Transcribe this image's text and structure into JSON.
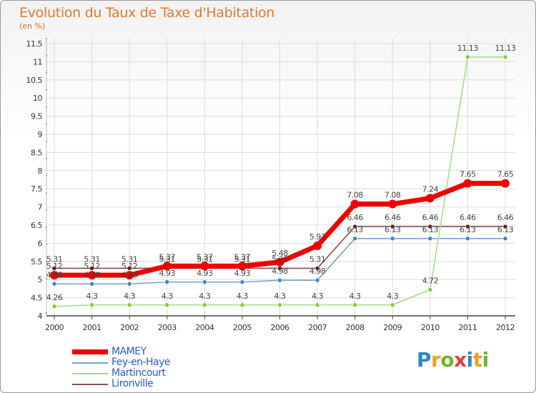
{
  "header": {
    "title": "Evolution du Taux de Taxe d'Habitation",
    "subtitle": "(en %)"
  },
  "colors": {
    "title": "#e07a2e",
    "axis": "#333333",
    "axis_red": "#cc0000",
    "grid": "#dcdcdc",
    "legend_text": "#2a5ac8"
  },
  "chart_data": {
    "type": "line",
    "title": "Evolution du Taux de Taxe d'Habitation",
    "subtitle": "(en %)",
    "xlabel": "",
    "ylabel": "",
    "x": [
      "2000",
      "2001",
      "2002",
      "2003",
      "2004",
      "2005",
      "2006",
      "2007",
      "2008",
      "2009",
      "2010",
      "2011",
      "2012"
    ],
    "ylim": [
      4,
      11.5
    ],
    "yticks": [
      "4",
      "4.5",
      "5",
      "5.5",
      "6",
      "6.5",
      "7",
      "7.5",
      "8",
      "8.5",
      "9",
      "9.5",
      "10",
      "10.5",
      "11",
      "11.5"
    ],
    "grid": true,
    "legend_position": "bottom-left",
    "series": [
      {
        "name": "MAMEY",
        "color": "#ee0000",
        "point_color": "#ee0000",
        "values": [
          5.12,
          5.12,
          5.12,
          5.37,
          5.37,
          5.37,
          5.48,
          5.93,
          7.08,
          7.08,
          7.24,
          7.65,
          7.65
        ],
        "labels": [
          "5.12",
          "5.12",
          "5.12",
          "5.37",
          "5.37",
          "5.37",
          "5.48",
          "5.93",
          "7.08",
          "7.08",
          "7.24",
          "7.65",
          "7.65"
        ]
      },
      {
        "name": "Fey-en-Haye",
        "color": "#7aa2c8",
        "point_color": "#3a86c8",
        "values": [
          4.88,
          4.88,
          4.88,
          4.93,
          4.93,
          4.93,
          4.98,
          4.98,
          6.13,
          6.13,
          6.13,
          6.13,
          6.13
        ],
        "labels": [
          "4.88",
          "4.88",
          "4.88",
          "4.93",
          "4.93",
          "4.93",
          "4.98",
          "4.98",
          "6.13",
          "6.13",
          "6.13",
          "6.13",
          "6.13"
        ]
      },
      {
        "name": "Martincourt",
        "color": "#a8dc8a",
        "point_color": "#86cc3c",
        "values": [
          4.26,
          4.3,
          4.3,
          4.3,
          4.3,
          4.3,
          4.3,
          4.3,
          4.3,
          4.3,
          4.72,
          11.13,
          11.13
        ],
        "labels": [
          "4.26",
          "4.3",
          "4.3",
          "4.3",
          "4.3",
          "4.3",
          "4.3",
          "4.3",
          "4.3",
          "4.3",
          "4.72",
          "11.13",
          "11.13"
        ]
      },
      {
        "name": "Lironville",
        "color": "#8a4e4e",
        "point_color": "#6e1616",
        "values": [
          5.31,
          5.31,
          5.31,
          5.31,
          5.31,
          5.31,
          5.31,
          5.31,
          6.46,
          6.46,
          6.46,
          6.46,
          6.46
        ],
        "labels": [
          "5.31",
          "5.31",
          "5.31",
          "5.31",
          "5.31",
          "5.31",
          "5.31",
          "5.31",
          "6.46",
          "6.46",
          "6.46",
          "6.46",
          "6.46"
        ]
      }
    ]
  },
  "logo": {
    "letters": [
      "P",
      "r",
      "o",
      "x",
      "i",
      "t",
      "i"
    ],
    "colors": [
      "#2e86c8",
      "#f0a020",
      "#6ab82c",
      "#e04040",
      "#2e86c8",
      "#f0a020",
      "#6ab82c"
    ]
  }
}
